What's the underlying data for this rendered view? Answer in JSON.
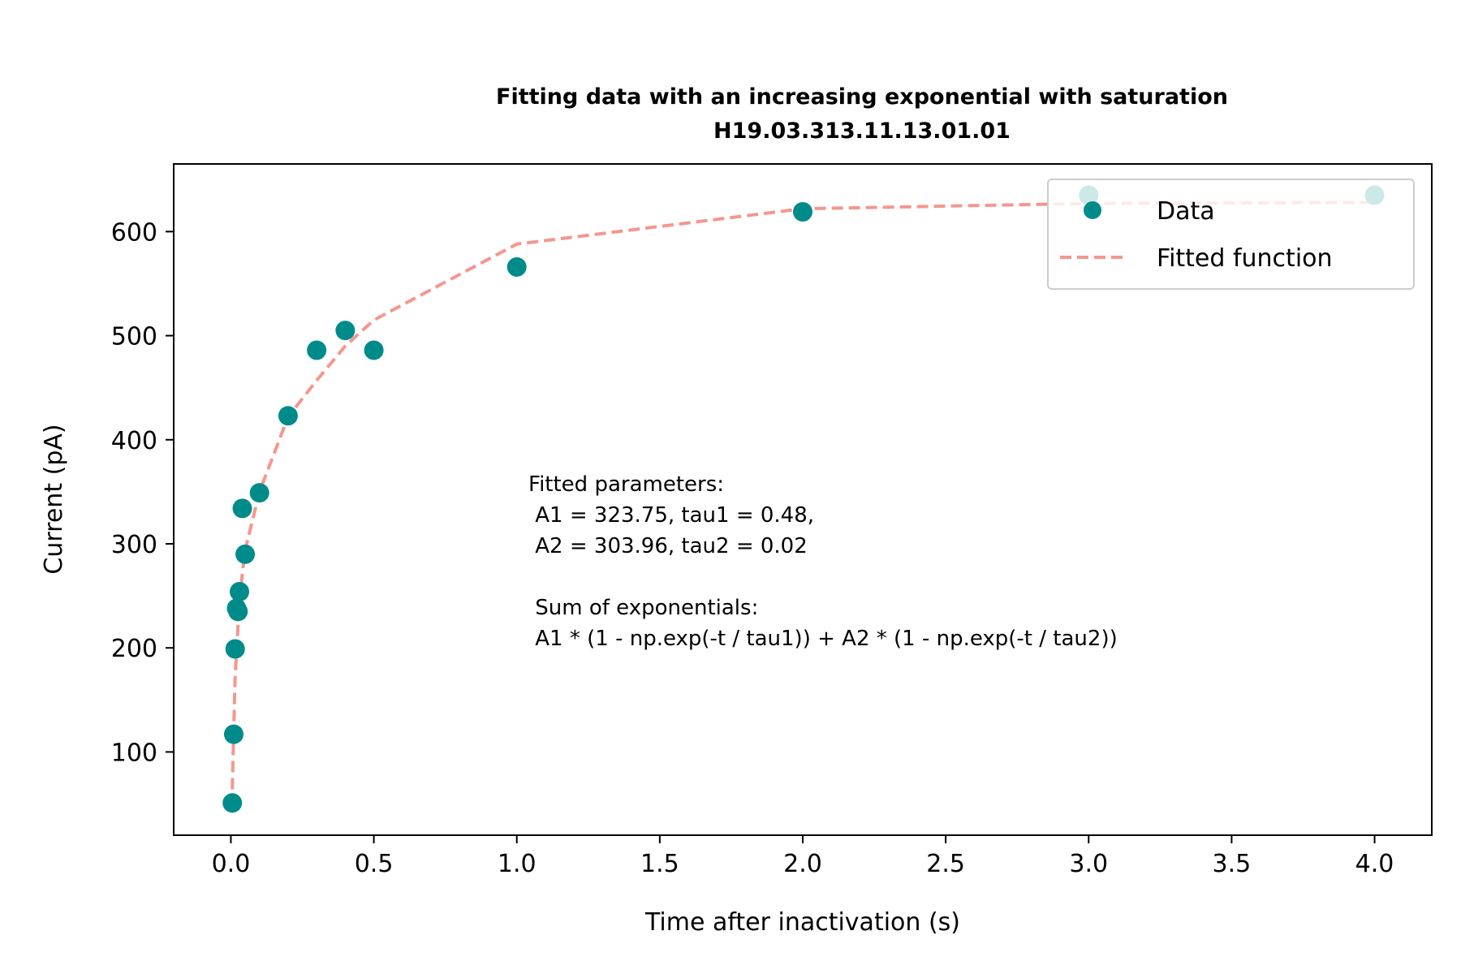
{
  "chart_data": {
    "type": "scatter",
    "title": "Fitting data with an increasing exponential with saturation",
    "subtitle": "H19.03.313.11.13.01.01",
    "xlabel": "Time after inactivation (s)",
    "ylabel": "Current (pA)",
    "xlim": [
      -0.2,
      4.2
    ],
    "ylim": [
      20,
      665
    ],
    "x_ticks": [
      0.0,
      0.5,
      1.0,
      1.5,
      2.0,
      2.5,
      3.0,
      3.5,
      4.0
    ],
    "x_tick_labels": [
      "0.0",
      "0.5",
      "1.0",
      "1.5",
      "2.0",
      "2.5",
      "3.0",
      "3.5",
      "4.0"
    ],
    "y_ticks": [
      100,
      200,
      300,
      400,
      500,
      600
    ],
    "y_tick_labels": [
      "100",
      "200",
      "300",
      "400",
      "500",
      "600"
    ],
    "grid": false,
    "legend_position": "top-right",
    "series": [
      {
        "name": "Data",
        "kind": "scatter",
        "color": "#008b8b",
        "x": [
          0.005,
          0.01,
          0.015,
          0.02,
          0.025,
          0.03,
          0.04,
          0.05,
          0.1,
          0.2,
          0.3,
          0.4,
          0.5,
          1.0,
          2.0,
          3.0,
          4.0
        ],
        "y": [
          51,
          117,
          199,
          238,
          235,
          254,
          334,
          290,
          349,
          423,
          486,
          505,
          486,
          566,
          619,
          635,
          635
        ]
      },
      {
        "name": "Fitted function",
        "kind": "line",
        "style": "dashed",
        "color": "#f4978e",
        "x": [
          0.005,
          0.01,
          0.015,
          0.02,
          0.025,
          0.03,
          0.04,
          0.05,
          0.1,
          0.2,
          0.3,
          0.4,
          0.5,
          1.0,
          2.0,
          3.0,
          4.0
        ],
        "y": [
          64,
          122,
          174,
          195,
          222,
          240,
          272,
          294,
          350,
          422,
          457,
          490,
          515,
          588,
          622,
          627,
          628
        ]
      }
    ],
    "annotation": [
      "Fitted parameters:",
      " A1 = 323.75, tau1 = 0.48,",
      " A2 = 303.96, tau2 = 0.02",
      "",
      " Sum of exponentials:",
      " A1 * (1 - np.exp(-t / tau1)) + A2 * (1 - np.exp(-t / tau2))"
    ]
  }
}
